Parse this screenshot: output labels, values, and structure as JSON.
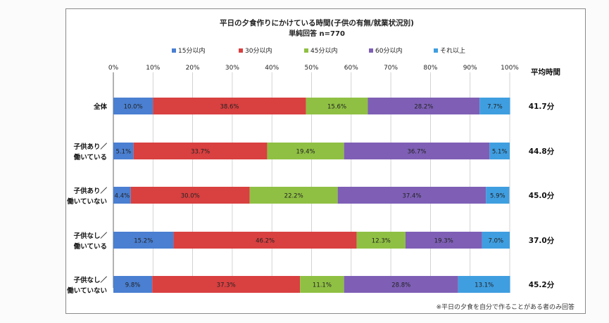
{
  "chart_data": {
    "type": "bar",
    "stacked": "percent",
    "orientation": "horizontal",
    "title": "平日の夕食作りにかけている時間(子供の有無/就業状況別)",
    "subtitle": "単純回答 n=770",
    "xlim": [
      0,
      100
    ],
    "x_ticks": [
      "0%",
      "10%",
      "20%",
      "30%",
      "40%",
      "50%",
      "60%",
      "70%",
      "80%",
      "90%",
      "100%"
    ],
    "legend_position": "top",
    "right_header": "平均時間",
    "footnote": "※平日の夕食を自分で作ることがある者のみ回答",
    "categories": [
      {
        "label": [
          "全体"
        ],
        "average": "41.7分"
      },
      {
        "label": [
          "子供あり／",
          "働いている"
        ],
        "average": "44.8分"
      },
      {
        "label": [
          "子供あり／",
          "働いていない"
        ],
        "average": "45.0分"
      },
      {
        "label": [
          "子供なし／",
          "働いている"
        ],
        "average": "37.0分"
      },
      {
        "label": [
          "子供なし／",
          "働いていない"
        ],
        "average": "45.2分"
      }
    ],
    "series": [
      {
        "name": "15分以内",
        "color": "#4a7fd1",
        "values": [
          10.0,
          5.1,
          4.4,
          15.2,
          9.8
        ]
      },
      {
        "name": "30分以内",
        "color": "#d94040",
        "values": [
          38.6,
          33.7,
          30.0,
          46.2,
          37.3
        ]
      },
      {
        "name": "45分以内",
        "color": "#8fc043",
        "values": [
          15.6,
          19.4,
          22.2,
          12.3,
          11.1
        ]
      },
      {
        "name": "60分以内",
        "color": "#7e5fb5",
        "values": [
          28.2,
          36.7,
          37.4,
          19.3,
          28.8
        ]
      },
      {
        "name": "それ以上",
        "color": "#3f9ee0",
        "values": [
          7.7,
          5.1,
          5.9,
          7.0,
          13.1
        ]
      }
    ]
  }
}
